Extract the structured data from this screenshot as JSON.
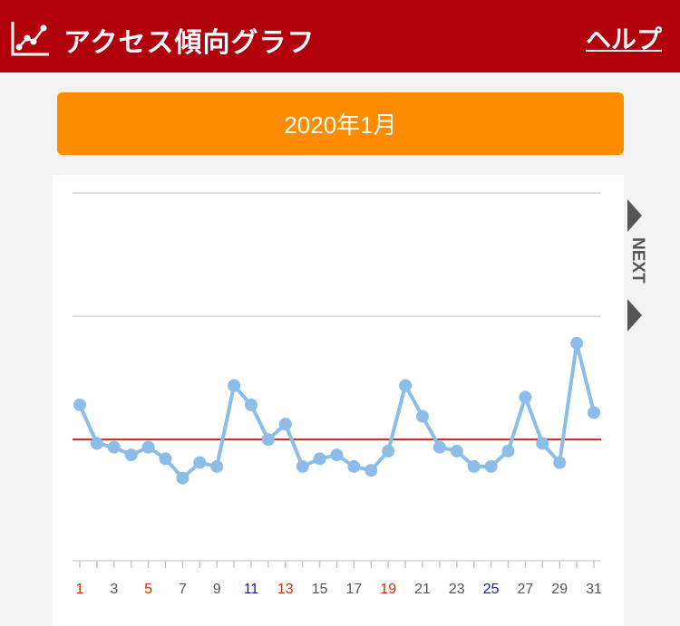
{
  "header": {
    "title": "アクセス傾向グラフ",
    "help_label": "ヘルプ",
    "background_color": "#b0000c"
  },
  "month": {
    "label": "2020年1月",
    "color": "#ff8c00"
  },
  "next_label": "NEXT",
  "chart_data": {
    "type": "line",
    "title": "",
    "xlabel": "",
    "ylabel": "",
    "x": [
      1,
      2,
      3,
      4,
      5,
      6,
      7,
      8,
      9,
      10,
      11,
      12,
      13,
      14,
      15,
      16,
      17,
      18,
      19,
      20,
      21,
      22,
      23,
      24,
      25,
      26,
      27,
      28,
      29,
      30,
      31
    ],
    "x_tick_labels": [
      "1",
      "3",
      "5",
      "7",
      "9",
      "11",
      "13",
      "15",
      "17",
      "19",
      "21",
      "23",
      "25",
      "27",
      "29",
      "31"
    ],
    "x_tick_colors": [
      "#cc3300",
      "#555555",
      "#cc3300",
      "#555555",
      "#555555",
      "#1a237e",
      "#cc3300",
      "#555555",
      "#555555",
      "#cc3300",
      "#555555",
      "#555555",
      "#1a237e",
      "#555555",
      "#555555",
      "#555555"
    ],
    "series": [
      {
        "values": [
          40,
          30,
          29,
          27,
          29,
          26,
          21,
          25,
          24,
          45,
          40,
          31,
          35,
          24,
          26,
          27,
          24,
          23,
          28,
          45,
          37,
          29,
          28,
          24,
          24,
          28,
          42,
          30,
          25,
          56,
          38
        ],
        "color": "#8bbde8"
      }
    ],
    "reference_line": {
      "value": 31,
      "color": "#cc2222"
    },
    "ylim": [
      0,
      95
    ],
    "gridlines": [
      63,
      95
    ],
    "grid": true,
    "legend": "none"
  }
}
